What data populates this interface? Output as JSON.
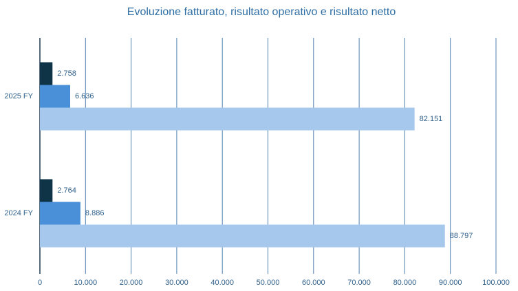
{
  "chart_data": {
    "type": "hbar",
    "title": "Evoluzione fatturato, risultato operativo e risultato netto",
    "categories": [
      "2025 FY",
      "2024 FY"
    ],
    "series": [
      {
        "color": "#0f3347",
        "values": [
          2758,
          2764
        ],
        "value_labels": [
          "2.758",
          "2.764"
        ]
      },
      {
        "color": "#4a90d9",
        "values": [
          6636,
          8886
        ],
        "value_labels": [
          "6.636",
          "8.886"
        ]
      },
      {
        "color": "#a6c8ec",
        "values": [
          82151,
          88797
        ],
        "value_labels": [
          "82.151",
          "88.797"
        ]
      }
    ],
    "xlim": [
      0,
      100000
    ],
    "xticks": [
      0,
      {
        "value": 10000,
        "label": "10.000"
      },
      {
        "value": 20000,
        "label": "20.000"
      },
      {
        "value": 30000,
        "label": "30.000"
      },
      {
        "value": 40000,
        "label": "40.000"
      },
      {
        "value": 50000,
        "label": "50.000"
      },
      {
        "value": 60000,
        "label": "60.000"
      },
      {
        "value": 70000,
        "label": "70.000"
      },
      {
        "value": 80000,
        "label": "80.000"
      },
      {
        "value": 90000,
        "label": "90.000"
      },
      {
        "value": 100000,
        "label": "100.000"
      }
    ],
    "grid": true
  }
}
